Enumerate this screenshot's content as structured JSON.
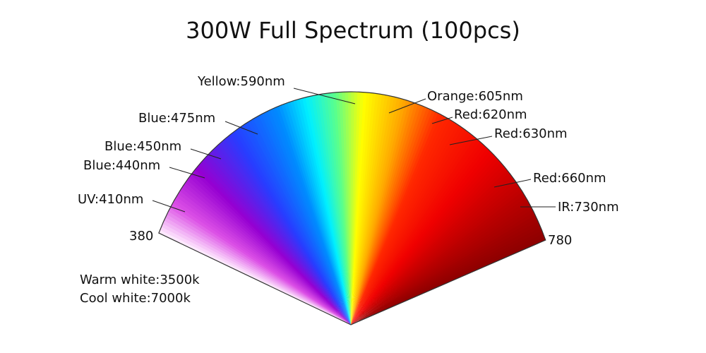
{
  "title": "300W Full Spectrum (100pcs)",
  "labels": [
    "Yellow:590nm",
    "Orange:605nm",
    "Red:620nm",
    "Red:630nm",
    "Red:660nm",
    "IR:730nm",
    "Blue:475nm",
    "Blue:450nm",
    "Blue:440nm",
    "UV:410nm"
  ],
  "range": {
    "start": "380",
    "end": "780"
  },
  "notes": [
    "Warm white:3500k",
    "Cool white:7000k"
  ]
}
